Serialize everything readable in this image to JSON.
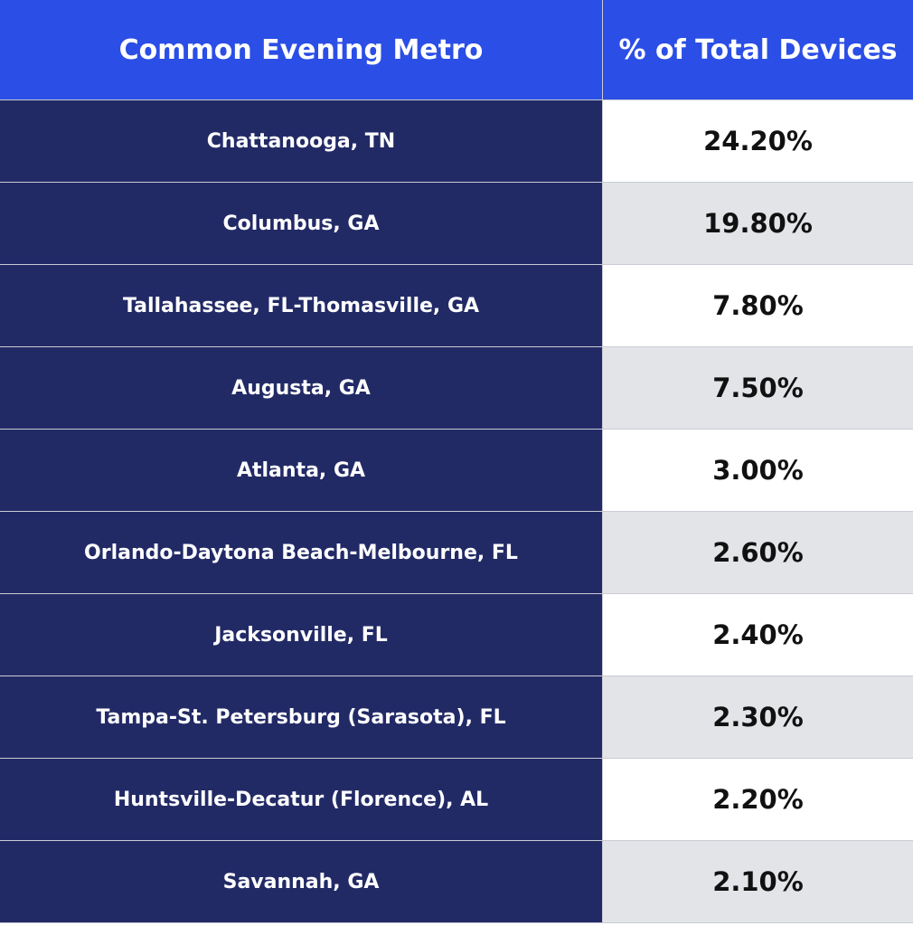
{
  "chart_data": {
    "type": "table",
    "columns": [
      "Common Evening Metro",
      "% of Total Devices"
    ],
    "rows": [
      {
        "metro": "Chattanooga, TN",
        "pct": "24.20%",
        "value": 24.2
      },
      {
        "metro": "Columbus, GA",
        "pct": "19.80%",
        "value": 19.8
      },
      {
        "metro": "Tallahassee, FL-Thomasville, GA",
        "pct": "7.80%",
        "value": 7.8
      },
      {
        "metro": "Augusta, GA",
        "pct": "7.50%",
        "value": 7.5
      },
      {
        "metro": "Atlanta, GA",
        "pct": "3.00%",
        "value": 3.0
      },
      {
        "metro": "Orlando-Daytona Beach-Melbourne, FL",
        "pct": "2.60%",
        "value": 2.6
      },
      {
        "metro": "Jacksonville, FL",
        "pct": "2.40%",
        "value": 2.4
      },
      {
        "metro": "Tampa-St. Petersburg (Sarasota), FL",
        "pct": "2.30%",
        "value": 2.3
      },
      {
        "metro": "Huntsville-Decatur (Florence), AL",
        "pct": "2.20%",
        "value": 2.2
      },
      {
        "metro": "Savannah, GA",
        "pct": "2.10%",
        "value": 2.1
      }
    ]
  },
  "colors": {
    "header_bg": "#2b4ee6",
    "metro_bg": "#222a66",
    "row_light": "#ffffff",
    "row_shaded": "#e3e4e8"
  }
}
